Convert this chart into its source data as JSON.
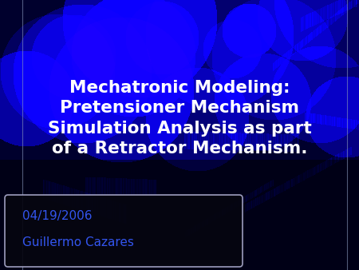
{
  "title_text": "Mechatronic Modeling:\nPretensioner Mechanism\nSimulation Analysis as part\nof a Retractor Mechanism.",
  "title_color": "#ffffff",
  "title_fontsize": 15.5,
  "date_text": "04/19/2006",
  "author_text": "Guillermo Cazares",
  "date_author_color": "#3355ee",
  "box_bg_color": "#060610",
  "box_edge_color": "#aaaacc",
  "bg_base_color": [
    0.0,
    0.0,
    0.25
  ],
  "slide_border_color": "#8899bb"
}
